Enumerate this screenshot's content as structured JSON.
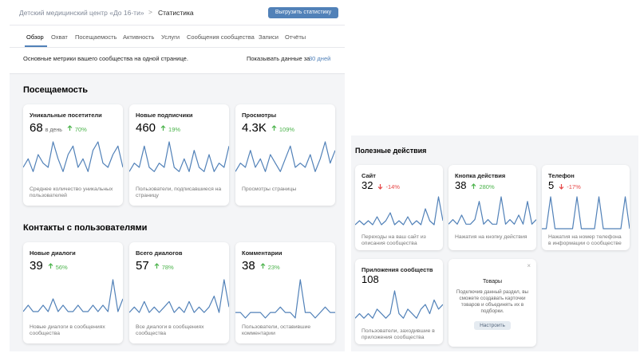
{
  "header": {
    "breadcrumb": "Детский медицинский центр «До 16-ти»",
    "page": "Статистика",
    "button": "Выгрузить статистику"
  },
  "tabs": [
    "Обзор",
    "Охват",
    "Посещаемость",
    "Активность",
    "Услуги",
    "Сообщения сообщества",
    "Записи",
    "Отчёты"
  ],
  "active_tab": 0,
  "summary": {
    "text": "Основные метрики вашего сообщества на одной странице.",
    "period_label": "Показывать данные за",
    "period": "30 дней"
  },
  "sections": [
    {
      "title": "Посещаемость",
      "cards": [
        {
          "title": "Уникальные посетители",
          "value": "68",
          "unit": "в день",
          "change": "70%",
          "trend": "up",
          "description": "Среднее количество уникальных пользователей",
          "series": [
            3,
            5,
            2,
            6,
            4,
            3,
            9,
            5,
            2,
            6,
            8,
            3,
            5,
            2,
            7,
            9,
            4,
            3,
            6,
            8,
            3
          ]
        },
        {
          "title": "Новые подписчики",
          "value": "460",
          "change": "19%",
          "trend": "up",
          "description": "Пользователи, подписавшиеся на страницу",
          "series": [
            2,
            4,
            3,
            8,
            3,
            2,
            4,
            3,
            9,
            3,
            2,
            5,
            2,
            7,
            3,
            2,
            6,
            2,
            4,
            3,
            8
          ]
        },
        {
          "title": "Просмотры",
          "value": "4.3K",
          "change": "109%",
          "trend": "up",
          "description": "Просмотры страницы",
          "series": [
            2,
            4,
            3,
            7,
            3,
            5,
            2,
            6,
            4,
            2,
            5,
            8,
            3,
            4,
            3,
            6,
            2,
            5,
            9,
            4,
            7
          ]
        }
      ]
    },
    {
      "title": "Контакты с пользователями",
      "cards": [
        {
          "title": "Новые диалоги",
          "value": "39",
          "change": "56%",
          "trend": "up",
          "description": "Новые диалоги в сообщениях сообщества",
          "series": [
            1,
            2,
            1,
            1,
            2,
            1,
            3,
            1,
            2,
            1,
            1,
            2,
            1,
            1,
            2,
            1,
            2,
            1,
            6,
            1,
            3
          ]
        },
        {
          "title": "Всего диалогов",
          "value": "57",
          "change": "78%",
          "trend": "up",
          "description": "Все диалоги в сообщениях сообщества",
          "series": [
            1,
            2,
            1,
            3,
            1,
            2,
            1,
            2,
            3,
            1,
            2,
            1,
            3,
            1,
            2,
            1,
            2,
            4,
            1,
            7,
            2
          ]
        },
        {
          "title": "Комментарии",
          "value": "38",
          "change": "23%",
          "trend": "up",
          "description": "Пользователи, оставившие комментарии",
          "series": [
            1,
            1,
            0,
            1,
            1,
            1,
            0,
            1,
            1,
            2,
            1,
            1,
            0,
            7,
            1,
            1,
            0,
            1,
            2,
            1,
            1
          ]
        }
      ]
    },
    {
      "title": "Полезные действия",
      "cards": [
        {
          "title": "Сайт",
          "value": "32",
          "change": "-14%",
          "trend": "down",
          "description": "Переходы на ваш сайт из описания сообщества",
          "series": [
            1,
            2,
            1,
            2,
            1,
            3,
            1,
            2,
            4,
            1,
            2,
            1,
            3,
            1,
            2,
            1,
            5,
            2,
            1,
            8,
            2
          ]
        },
        {
          "title": "Кнопка действия",
          "value": "38",
          "change": "280%",
          "trend": "up",
          "description": "Нажатия на кнопку действия",
          "series": [
            1,
            2,
            1,
            3,
            1,
            1,
            2,
            6,
            1,
            2,
            1,
            1,
            7,
            1,
            2,
            1,
            3,
            1,
            6,
            1,
            2
          ]
        },
        {
          "title": "Телефон",
          "value": "5",
          "change": "-17%",
          "trend": "down",
          "description": "Нажатия на номер телефона в информации о сообществе",
          "series": [
            0,
            0,
            1,
            0,
            0,
            0,
            0,
            0,
            1,
            0,
            0,
            0,
            0,
            1,
            0,
            0,
            0,
            0,
            0,
            1,
            0
          ]
        },
        {
          "title": "Приложения сообществ",
          "value": "108",
          "description": "Пользователи, заходившие в приложения сообщества",
          "series": [
            1,
            2,
            1,
            2,
            1,
            3,
            2,
            1,
            2,
            7,
            2,
            1,
            3,
            2,
            1,
            3,
            4,
            2,
            5,
            3,
            4
          ]
        }
      ]
    }
  ],
  "promo": {
    "title": "Товары",
    "text": "Подключив данный раздел, вы сможете создавать карточки товаров и объединять их в подборки.",
    "button": "Настроить"
  }
}
